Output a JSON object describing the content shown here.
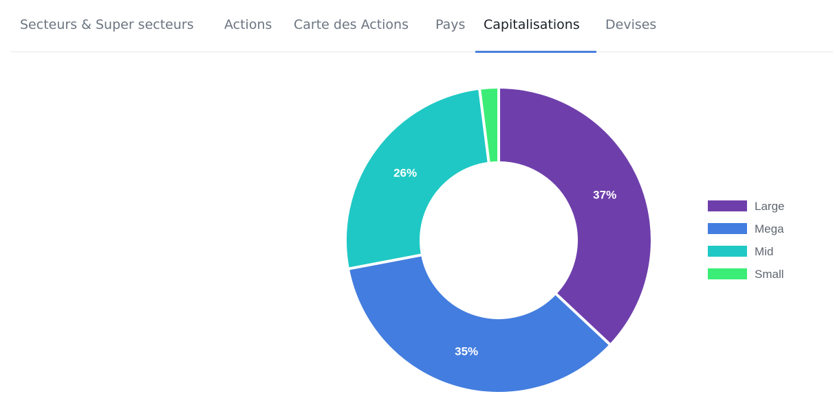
{
  "tabs": [
    {
      "label": "Secteurs & Super secteurs",
      "active": false
    },
    {
      "label": "Actions",
      "active": false
    },
    {
      "label": "Carte des Actions",
      "active": false
    },
    {
      "label": "Pays",
      "active": false
    },
    {
      "label": "Capitalisations",
      "active": true
    },
    {
      "label": "Devises",
      "active": false
    }
  ],
  "colors": {
    "accent": "#4a7fdc",
    "slice_border": "#ffffff"
  },
  "chart_data": {
    "type": "pie",
    "donut": true,
    "title": "",
    "legend_position": "right",
    "slices": [
      {
        "name": "Large",
        "value": 37,
        "label": "37%",
        "color": "#6e3fab"
      },
      {
        "name": "Mega",
        "value": 35,
        "label": "35%",
        "color": "#437ddf"
      },
      {
        "name": "Mid",
        "value": 26,
        "label": "26%",
        "color": "#1fc8c4"
      },
      {
        "name": "Small",
        "value": 2,
        "label": "",
        "color": "#3bed76"
      }
    ]
  }
}
